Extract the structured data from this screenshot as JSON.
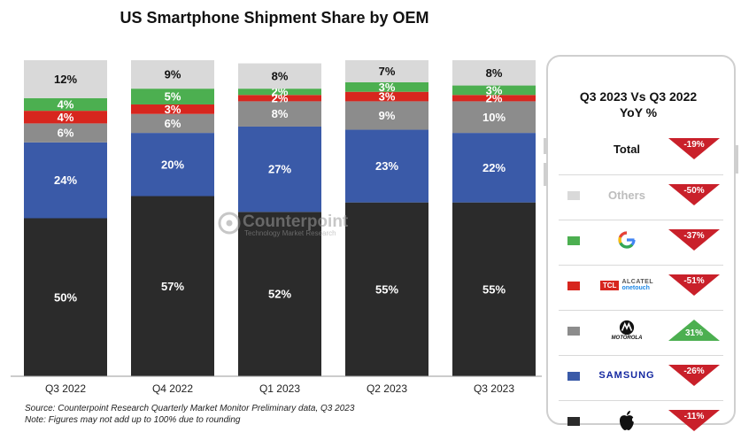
{
  "title": "US Smartphone Shipment Share by OEM",
  "chart_data": {
    "type": "bar",
    "stacked": true,
    "categories": [
      "Q3 2022",
      "Q4 2022",
      "Q1 2023",
      "Q2 2023",
      "Q3 2023"
    ],
    "ylim": [
      0,
      100
    ],
    "series": [
      {
        "name": "Apple",
        "color": "#2b2b2b",
        "values": [
          50,
          57,
          52,
          55,
          55
        ],
        "labels": [
          "50%",
          "57%",
          "52%",
          "55%",
          "55%"
        ]
      },
      {
        "name": "Samsung",
        "color": "#3a5aa8",
        "values": [
          24,
          20,
          27,
          23,
          22
        ],
        "labels": [
          "24%",
          "20%",
          "27%",
          "23%",
          "22%"
        ]
      },
      {
        "name": "Motorola",
        "color": "#8c8c8c",
        "values": [
          6,
          6,
          8,
          9,
          10
        ],
        "labels": [
          "6%",
          "6%",
          "8%",
          "9%",
          "10%"
        ]
      },
      {
        "name": "TCL",
        "color": "#d7261e",
        "values": [
          4,
          3,
          2,
          3,
          2
        ],
        "labels": [
          "4%",
          "3%",
          "2%",
          "3%",
          "2%"
        ]
      },
      {
        "name": "Google",
        "color": "#4caf50",
        "values": [
          4,
          5,
          2,
          3,
          3
        ],
        "labels": [
          "4%",
          "5%",
          "2%",
          "3%",
          "3%"
        ]
      },
      {
        "name": "Others",
        "color": "#d9d9d9",
        "values": [
          12,
          9,
          8,
          7,
          8
        ],
        "labels": [
          "12%",
          "9%",
          "8%",
          "7%",
          "8%"
        ]
      }
    ]
  },
  "watermark": {
    "brand": "Counterpoint",
    "tagline": "Technology Market Research"
  },
  "notes": {
    "source": "Source: Counterpoint Research Quarterly Market Monitor Preliminary data, Q3 2023",
    "note": "Note: Figures may not add up to 100% due to rounding"
  },
  "panel": {
    "header_line1": "Q3 2023 Vs Q3 2022",
    "header_line2": "YoY %",
    "rows": [
      {
        "name": "Total",
        "swatch": "",
        "logo_icon": "",
        "change": "-19%",
        "direction": "down"
      },
      {
        "name": "Others",
        "swatch": "#d9d9d9",
        "logo_icon": "",
        "change": "-50%",
        "direction": "down"
      },
      {
        "name": "",
        "swatch": "#4caf50",
        "logo_icon": "google-logo-icon",
        "change": "-37%",
        "direction": "down"
      },
      {
        "name": "",
        "swatch": "#d7261e",
        "logo_icon": "tcl-alcatel-logo-icon",
        "logo_text": "TCL",
        "logo_text2": "ALCATEL",
        "logo_text3": "onetouch",
        "change": "-51%",
        "direction": "down"
      },
      {
        "name": "",
        "swatch": "#8c8c8c",
        "logo_icon": "motorola-logo-icon",
        "logo_text": "MOTOROLA",
        "change": "31%",
        "direction": "up"
      },
      {
        "name": "",
        "swatch": "#3a5aa8",
        "logo_icon": "samsung-logo-icon",
        "logo_text": "SAMSUNG",
        "change": "-26%",
        "direction": "down"
      },
      {
        "name": "",
        "swatch": "#2b2b2b",
        "logo_icon": "apple-logo-icon",
        "change": "-11%",
        "direction": "down"
      }
    ],
    "colors": {
      "down": "#c9202a",
      "up": "#4caf50"
    }
  }
}
